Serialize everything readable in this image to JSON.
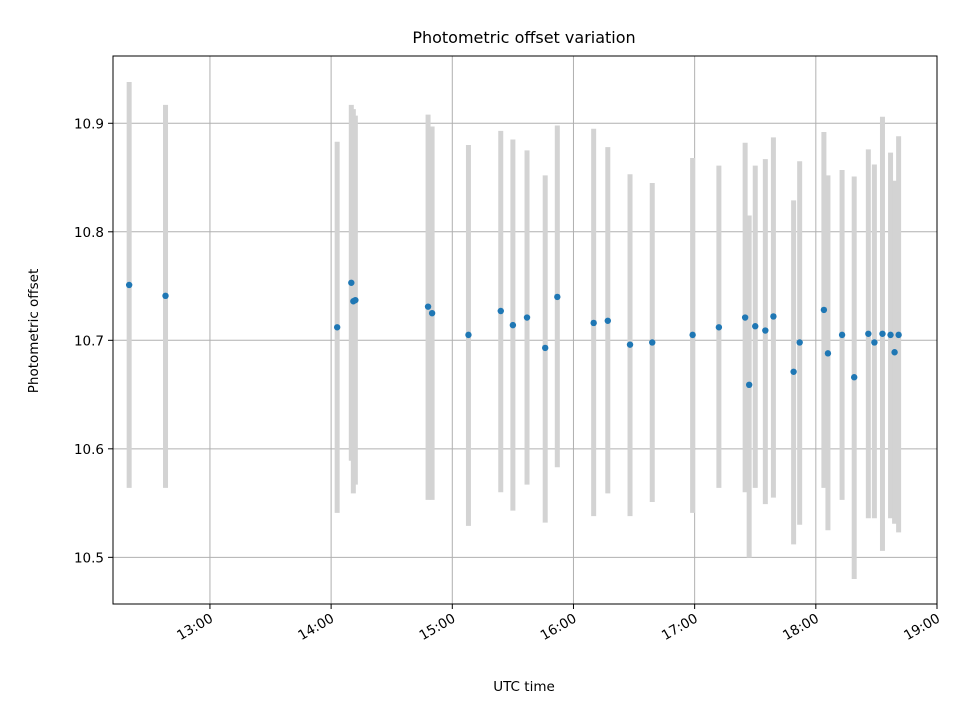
{
  "chart_data": {
    "type": "scatter",
    "title": "Photometric offset variation",
    "xlabel": "UTC time",
    "ylabel": "Photometric offset",
    "x_unit": "time of day (HH:MM)",
    "xlim": [
      "12:12",
      "19:00"
    ],
    "ylim": [
      10.457,
      10.962
    ],
    "x_ticks": [
      "13:00",
      "14:00",
      "15:00",
      "16:00",
      "17:00",
      "18:00",
      "19:00"
    ],
    "y_ticks": [
      "10.5",
      "10.6",
      "10.7",
      "10.8",
      "10.9"
    ],
    "grid": true,
    "marker_color": "#1f77b4",
    "errorbar_color": "#d3d3d3",
    "points": [
      {
        "x": "12:20",
        "y": 10.751,
        "lo": 10.564,
        "hi": 10.938
      },
      {
        "x": "12:38",
        "y": 10.741,
        "lo": 10.564,
        "hi": 10.917
      },
      {
        "x": "14:03",
        "y": 10.712,
        "lo": 10.541,
        "hi": 10.883
      },
      {
        "x": "14:10",
        "y": 10.753,
        "lo": 10.589,
        "hi": 10.917
      },
      {
        "x": "14:11",
        "y": 10.736,
        "lo": 10.559,
        "hi": 10.913
      },
      {
        "x": "14:12",
        "y": 10.737,
        "lo": 10.567,
        "hi": 10.907
      },
      {
        "x": "14:48",
        "y": 10.731,
        "lo": 10.553,
        "hi": 10.908
      },
      {
        "x": "14:50",
        "y": 10.725,
        "lo": 10.553,
        "hi": 10.897
      },
      {
        "x": "15:08",
        "y": 10.705,
        "lo": 10.529,
        "hi": 10.88
      },
      {
        "x": "15:24",
        "y": 10.727,
        "lo": 10.56,
        "hi": 10.893
      },
      {
        "x": "15:30",
        "y": 10.714,
        "lo": 10.543,
        "hi": 10.885
      },
      {
        "x": "15:37",
        "y": 10.721,
        "lo": 10.567,
        "hi": 10.875
      },
      {
        "x": "15:46",
        "y": 10.693,
        "lo": 10.532,
        "hi": 10.852
      },
      {
        "x": "15:52",
        "y": 10.74,
        "lo": 10.583,
        "hi": 10.898
      },
      {
        "x": "16:10",
        "y": 10.716,
        "lo": 10.538,
        "hi": 10.895
      },
      {
        "x": "16:17",
        "y": 10.718,
        "lo": 10.559,
        "hi": 10.878
      },
      {
        "x": "16:28",
        "y": 10.696,
        "lo": 10.538,
        "hi": 10.853
      },
      {
        "x": "16:39",
        "y": 10.698,
        "lo": 10.551,
        "hi": 10.845
      },
      {
        "x": "16:59",
        "y": 10.705,
        "lo": 10.541,
        "hi": 10.868
      },
      {
        "x": "17:12",
        "y": 10.712,
        "lo": 10.564,
        "hi": 10.861
      },
      {
        "x": "17:25",
        "y": 10.721,
        "lo": 10.56,
        "hi": 10.882
      },
      {
        "x": "17:27",
        "y": 10.659,
        "lo": 10.5,
        "hi": 10.815
      },
      {
        "x": "17:30",
        "y": 10.713,
        "lo": 10.564,
        "hi": 10.861
      },
      {
        "x": "17:35",
        "y": 10.709,
        "lo": 10.549,
        "hi": 10.867
      },
      {
        "x": "17:39",
        "y": 10.722,
        "lo": 10.555,
        "hi": 10.887
      },
      {
        "x": "17:49",
        "y": 10.671,
        "lo": 10.512,
        "hi": 10.829
      },
      {
        "x": "17:52",
        "y": 10.698,
        "lo": 10.53,
        "hi": 10.865
      },
      {
        "x": "18:04",
        "y": 10.728,
        "lo": 10.564,
        "hi": 10.892
      },
      {
        "x": "18:06",
        "y": 10.688,
        "lo": 10.525,
        "hi": 10.852
      },
      {
        "x": "18:13",
        "y": 10.705,
        "lo": 10.553,
        "hi": 10.857
      },
      {
        "x": "18:19",
        "y": 10.666,
        "lo": 10.48,
        "hi": 10.851
      },
      {
        "x": "18:26",
        "y": 10.706,
        "lo": 10.536,
        "hi": 10.876
      },
      {
        "x": "18:29",
        "y": 10.698,
        "lo": 10.536,
        "hi": 10.862
      },
      {
        "x": "18:33",
        "y": 10.706,
        "lo": 10.506,
        "hi": 10.906
      },
      {
        "x": "18:37",
        "y": 10.705,
        "lo": 10.536,
        "hi": 10.873
      },
      {
        "x": "18:39",
        "y": 10.689,
        "lo": 10.531,
        "hi": 10.847
      },
      {
        "x": "18:41",
        "y": 10.705,
        "lo": 10.523,
        "hi": 10.888
      }
    ]
  }
}
